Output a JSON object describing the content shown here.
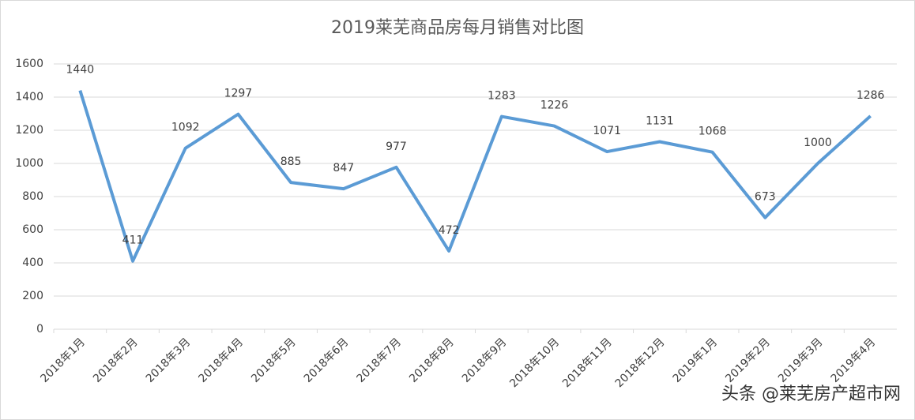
{
  "chart_data": {
    "type": "line",
    "title": "2019莱芜商品房每月销售对比图",
    "categories": [
      "2018年1月",
      "2018年2月",
      "2018年3月",
      "2018年4月",
      "2018年5月",
      "2018年6月",
      "2018年7月",
      "2018年8月",
      "2018年9月",
      "2018年10月",
      "2018年11月",
      "2018年12月",
      "2019年1月",
      "2019年2月",
      "2019年3月",
      "2019年4月"
    ],
    "series": [
      {
        "color": "#5b9bd5",
        "values": [
          1440,
          411,
          1092,
          1297,
          885,
          847,
          977,
          472,
          1283,
          1226,
          1071,
          1131,
          1068,
          673,
          1000,
          1286
        ]
      }
    ],
    "ylim": [
      0,
      1600
    ],
    "yticks": [
      0,
      200,
      400,
      600,
      800,
      1000,
      1200,
      1400,
      1600
    ],
    "grid": true
  },
  "watermark": "头条 @莱芜房产超市网"
}
